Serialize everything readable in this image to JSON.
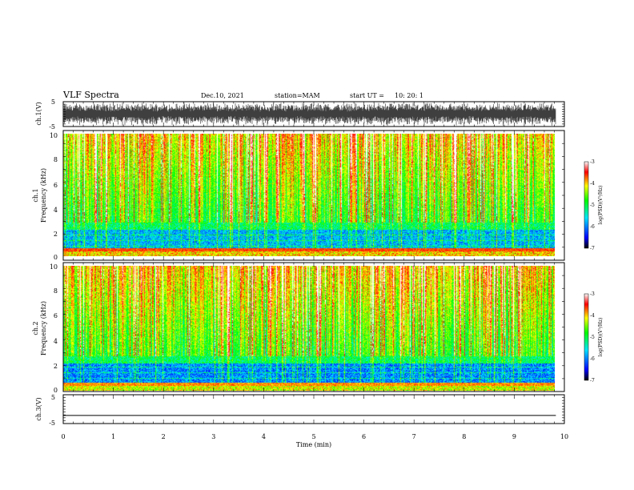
{
  "header": {
    "title": "VLF Spectra",
    "date": "Dec.10, 2021",
    "station": "station=MAM",
    "start_label": "start  UT  =",
    "start_time": "10: 20: 1"
  },
  "chart_data": [
    {
      "type": "line",
      "name": "ch1-waveform",
      "ylabel": "ch.1(V)",
      "ylim": [
        -5,
        5
      ],
      "yticks": [
        "5",
        "-5"
      ],
      "xlim": [
        0,
        10
      ],
      "description_values": "dense noise waveform spanning roughly -5 to 5 V"
    },
    {
      "type": "heatmap",
      "name": "ch1-spectrogram",
      "ylabel": "ch.1\nFrequency (kHz)",
      "ylabel_lines": [
        "ch.1",
        "Frequency (kHz)"
      ],
      "ylim": [
        0,
        10
      ],
      "yticks": [
        "0",
        "2",
        "4",
        "6",
        "8",
        "10"
      ],
      "xlim": [
        0,
        9.83
      ],
      "colorbar": {
        "label": "log(PSD)(V²/Hz)",
        "min": -7,
        "max": -3,
        "ticks": [
          "-3",
          "-4",
          "-5",
          "-6",
          "-7"
        ]
      }
    },
    {
      "type": "heatmap",
      "name": "ch2-spectrogram",
      "ylabel_lines": [
        "ch.2",
        "Frequency (kHz)"
      ],
      "ylim": [
        0,
        10
      ],
      "yticks": [
        "0",
        "2",
        "4",
        "6",
        "8",
        "10"
      ],
      "xlim": [
        0,
        9.83
      ],
      "colorbar": {
        "label": "log(PSD)(V²/Hz)",
        "min": -7,
        "max": -3,
        "ticks": [
          "-3",
          "-4",
          "-5",
          "-6",
          "-7"
        ]
      }
    },
    {
      "type": "line",
      "name": "ch3-waveform",
      "ylabel": "ch.3(V)",
      "ylim": [
        -5,
        5
      ],
      "yticks": [
        "5",
        "-5"
      ],
      "x": [
        0,
        9.83
      ],
      "y": [
        -2.2,
        -2.2
      ]
    }
  ],
  "xaxis": {
    "label": "Time  (min)",
    "ticks": [
      "0",
      "1",
      "2",
      "3",
      "4",
      "5",
      "6",
      "7",
      "8",
      "9",
      "10"
    ],
    "xlim": [
      0,
      10
    ]
  }
}
